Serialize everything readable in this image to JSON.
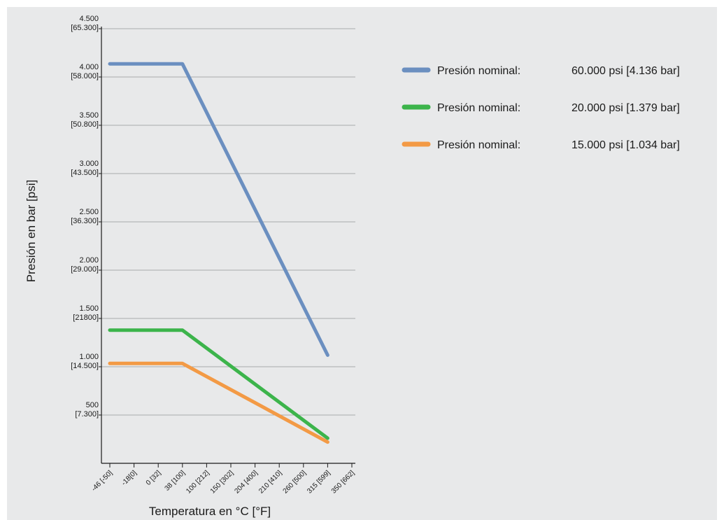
{
  "chart_data": {
    "type": "line",
    "xlabel": "Temperatura en °C [°F]",
    "ylabel": "Presión en bar [psi]",
    "categories": [
      "-46 [-50]",
      "-18[0]",
      "0 [32]",
      "38 [100]",
      "100 [212]",
      "150 [302]",
      "204 [400]",
      "210 [410]",
      "260 [500]",
      "315 [599]",
      "350 [662]"
    ],
    "yticks": [
      {
        "value": 500,
        "label": "500",
        "sublabel": "[7.300]"
      },
      {
        "value": 1000,
        "label": "1.000",
        "sublabel": "[14.500]"
      },
      {
        "value": 1500,
        "label": "1.500",
        "sublabel": "[21800]"
      },
      {
        "value": 2000,
        "label": "2.000",
        "sublabel": "[29.000]"
      },
      {
        "value": 2500,
        "label": "2.500",
        "sublabel": "[36.300]"
      },
      {
        "value": 3000,
        "label": "3.000",
        "sublabel": "[43.500]"
      },
      {
        "value": 3500,
        "label": "3.500",
        "sublabel": "[50.800]"
      },
      {
        "value": 4000,
        "label": "4.000",
        "sublabel": "[58.000]"
      },
      {
        "value": 4500,
        "label": "4.500",
        "sublabel": "[65.300]"
      }
    ],
    "ylim": [
      0,
      4500
    ],
    "grid": true,
    "legend_position": "right",
    "series": [
      {
        "name": "Presión nominal:",
        "value_label": "60.000 psi [4.136 bar]",
        "color": "#6b8fc0",
        "points": [
          {
            "x": "-46 [-50]",
            "y": 4136
          },
          {
            "x": "38 [100]",
            "y": 4136
          },
          {
            "x": "315 [599]",
            "y": 1120
          }
        ]
      },
      {
        "name": "Presión nominal:",
        "value_label": "20.000 psi [1.379 bar]",
        "color": "#3cb44b",
        "points": [
          {
            "x": "-46 [-50]",
            "y": 1379
          },
          {
            "x": "38 [100]",
            "y": 1379
          },
          {
            "x": "315 [599]",
            "y": 260
          }
        ]
      },
      {
        "name": "Presión nominal:",
        "value_label": "15.000 psi [1.034 bar]",
        "color": "#f39a45",
        "points": [
          {
            "x": "-46 [-50]",
            "y": 1034
          },
          {
            "x": "38 [100]",
            "y": 1034
          },
          {
            "x": "315 [599]",
            "y": 220
          }
        ]
      }
    ]
  }
}
